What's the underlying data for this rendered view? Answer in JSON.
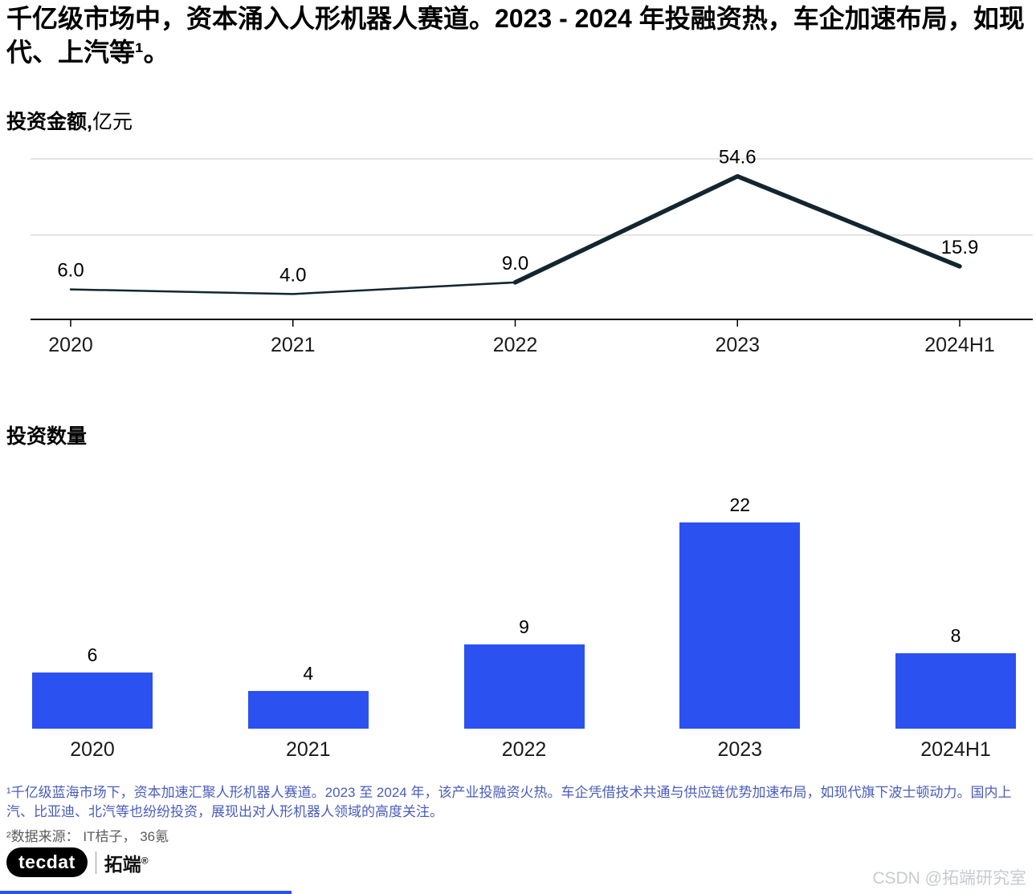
{
  "title": "千亿级市场中，资本涌入人形机器人赛道。2023 - 2024 年投融资热，车企加速布局，如现代、上汽等¹。",
  "chart_data": [
    {
      "type": "line",
      "title": "投资金额,",
      "unit": "亿元",
      "categories": [
        "2020",
        "2021",
        "2022",
        "2023",
        "2024H1"
      ],
      "values": [
        6.0,
        4.0,
        9.0,
        54.6,
        15.9
      ],
      "value_labels": [
        "6.0",
        "4.0",
        "9.0",
        "54.6",
        "15.9"
      ],
      "emphasis_start_index": 2,
      "line_color": "#13262f",
      "grid_color": "#c9c9c9",
      "axis_color": "#000000",
      "grid": true,
      "legend": "none",
      "ylim": [
        0,
        60
      ]
    },
    {
      "type": "bar",
      "title": "投资数量",
      "categories": [
        "2020",
        "2021",
        "2022",
        "2023",
        "2024H1"
      ],
      "values": [
        6,
        4,
        9,
        22,
        8
      ],
      "value_labels": [
        "6",
        "4",
        "9",
        "22",
        "8"
      ],
      "bar_color": "#2b52f0",
      "grid": false,
      "legend": "none",
      "ylim": [
        0,
        24
      ]
    }
  ],
  "footnotes": {
    "note1": "¹千亿级蓝海市场下，资本加速汇聚人形机器人赛道。2023 至 2024 年，该产业投融资火热。车企凭借技术共通与供应链优势加速布局，如现代旗下波士顿动力。国内上汽、比亚迪、北汽等也纷纷投资，展现出对人形机器人领域的高度关注。",
    "note2": "²数据来源： IT桔子， 36氪"
  },
  "logo": {
    "brand": "tecdat",
    "brand_cn": "拓端",
    "registered": "®"
  },
  "watermark": "CSDN @拓端研究室",
  "colors": {
    "bar": "#2b52f0",
    "accent_strip": "#2b52f0",
    "footnote_blue": "#4a5cbb"
  }
}
